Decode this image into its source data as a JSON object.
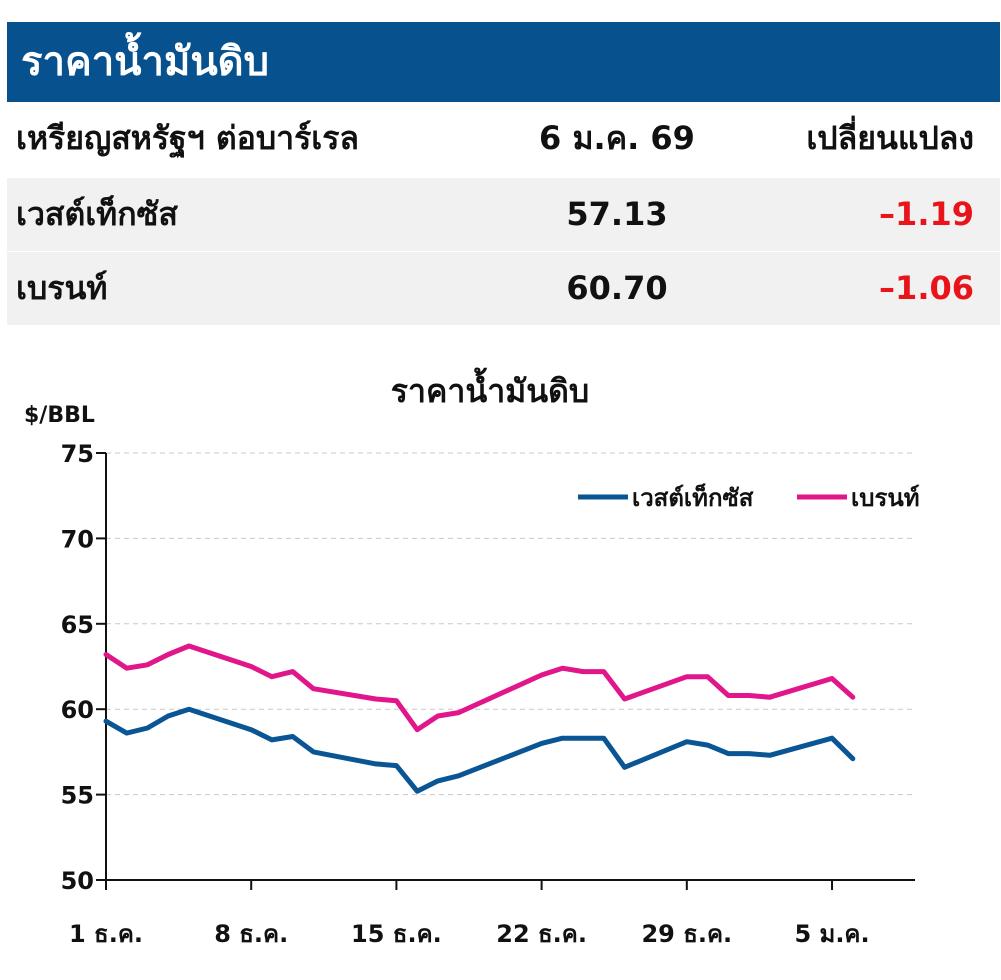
{
  "header": {
    "title": "ราคาน้ำมันดิบ"
  },
  "table": {
    "columns": [
      "เหรียญสหรัฐฯ ต่อบาร์เรล",
      "6 ม.ค. 69",
      "เปลี่ยนแปลง"
    ],
    "rows": [
      {
        "name": "เวสต์เท็กซัส",
        "price": "57.13",
        "change": "–1.19"
      },
      {
        "name": "เบรนท์",
        "price": "60.70",
        "change": "–1.06"
      }
    ]
  },
  "chart_data": {
    "type": "line",
    "title": "ราคาน้ำมันดิบ",
    "ylabel": "$/BBL",
    "ylim": [
      50,
      75
    ],
    "yticks": [
      50,
      55,
      60,
      65,
      70,
      75
    ],
    "xlim": [
      1,
      40
    ],
    "xticks": [
      {
        "x": 1,
        "label": "1 ธ.ค."
      },
      {
        "x": 8,
        "label": "8 ธ.ค."
      },
      {
        "x": 15,
        "label": "15 ธ.ค."
      },
      {
        "x": 22,
        "label": "22 ธ.ค."
      },
      {
        "x": 29,
        "label": "29 ธ.ค."
      },
      {
        "x": 36,
        "label": "5 ม.ค."
      }
    ],
    "grid": true,
    "legend_position": "top-right",
    "series": [
      {
        "name": "เวสต์เท็กซัส",
        "color": "#0a5594",
        "points": [
          [
            1,
            59.3
          ],
          [
            2,
            58.6
          ],
          [
            3,
            58.9
          ],
          [
            4,
            59.6
          ],
          [
            5,
            60.0
          ],
          [
            8,
            58.8
          ],
          [
            9,
            58.2
          ],
          [
            10,
            58.4
          ],
          [
            11,
            57.5
          ],
          [
            14,
            56.8
          ],
          [
            15,
            56.7
          ],
          [
            16,
            55.2
          ],
          [
            17,
            55.8
          ],
          [
            18,
            56.1
          ],
          [
            22,
            58.0
          ],
          [
            23,
            58.3
          ],
          [
            24,
            58.3
          ],
          [
            25,
            58.3
          ],
          [
            26,
            56.6
          ],
          [
            29,
            58.1
          ],
          [
            30,
            57.9
          ],
          [
            31,
            57.4
          ],
          [
            32,
            57.4
          ],
          [
            33,
            57.3
          ],
          [
            36,
            58.3
          ],
          [
            37,
            57.1
          ]
        ]
      },
      {
        "name": "เบรนท์",
        "color": "#e0168a",
        "points": [
          [
            1,
            63.2
          ],
          [
            2,
            62.4
          ],
          [
            3,
            62.6
          ],
          [
            4,
            63.2
          ],
          [
            5,
            63.7
          ],
          [
            8,
            62.5
          ],
          [
            9,
            61.9
          ],
          [
            10,
            62.2
          ],
          [
            11,
            61.2
          ],
          [
            14,
            60.6
          ],
          [
            15,
            60.5
          ],
          [
            16,
            58.8
          ],
          [
            17,
            59.6
          ],
          [
            18,
            59.8
          ],
          [
            22,
            62.0
          ],
          [
            23,
            62.4
          ],
          [
            24,
            62.2
          ],
          [
            25,
            62.2
          ],
          [
            26,
            60.6
          ],
          [
            29,
            61.9
          ],
          [
            30,
            61.9
          ],
          [
            31,
            60.8
          ],
          [
            32,
            60.8
          ],
          [
            33,
            60.7
          ],
          [
            36,
            61.8
          ],
          [
            37,
            60.7
          ]
        ]
      }
    ]
  }
}
